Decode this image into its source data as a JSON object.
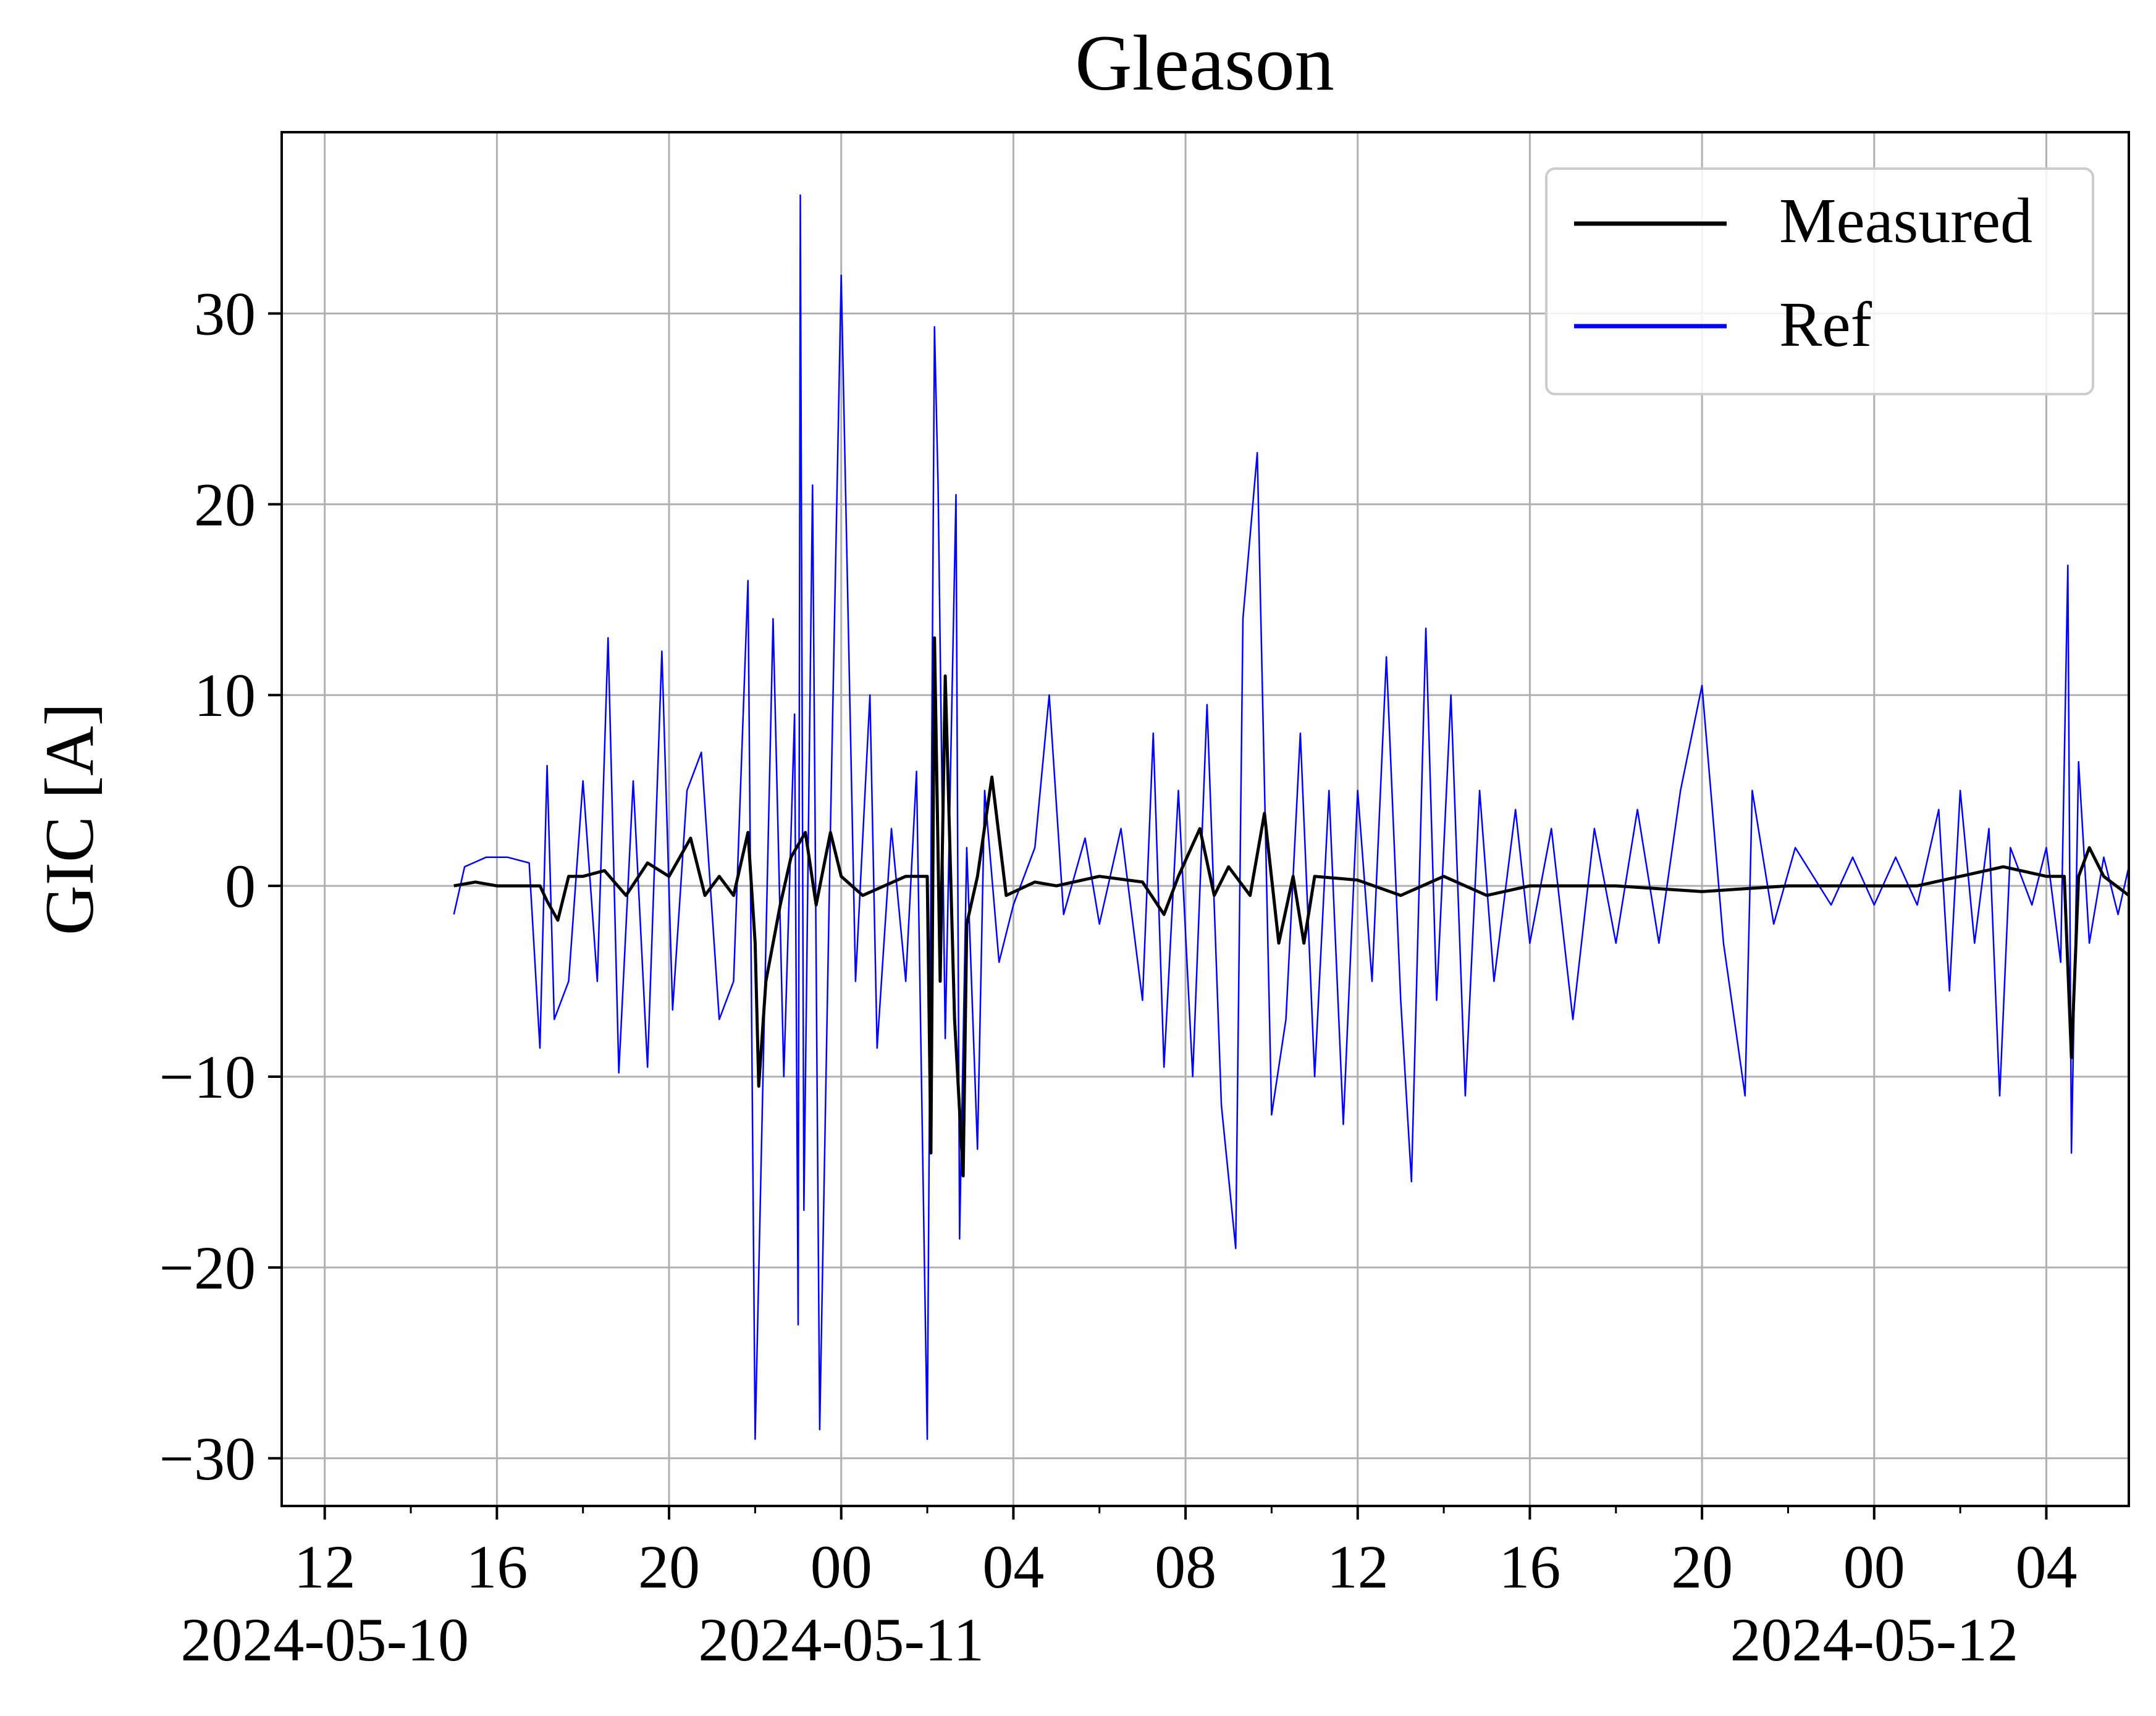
{
  "chart_data": {
    "type": "line",
    "title": "Gleason",
    "xlabel": "",
    "ylabel": "GIC [A]",
    "xlim": [
      "2024-05-10T11:00",
      "2024-05-12T05:55"
    ],
    "ylim": [
      -32.5,
      39.5
    ],
    "x_ticks": [
      {
        "t": "2024-05-10T12:00",
        "label": "12",
        "date": "2024-05-10"
      },
      {
        "t": "2024-05-10T16:00",
        "label": "16",
        "date": ""
      },
      {
        "t": "2024-05-10T20:00",
        "label": "20",
        "date": ""
      },
      {
        "t": "2024-05-11T00:00",
        "label": "00",
        "date": "2024-05-11"
      },
      {
        "t": "2024-05-11T04:00",
        "label": "04",
        "date": ""
      },
      {
        "t": "2024-05-11T08:00",
        "label": "08",
        "date": ""
      },
      {
        "t": "2024-05-11T12:00",
        "label": "12",
        "date": ""
      },
      {
        "t": "2024-05-11T16:00",
        "label": "16",
        "date": ""
      },
      {
        "t": "2024-05-11T20:00",
        "label": "20",
        "date": ""
      },
      {
        "t": "2024-05-12T00:00",
        "label": "00",
        "date": "2024-05-12"
      },
      {
        "t": "2024-05-12T04:00",
        "label": "04",
        "date": ""
      }
    ],
    "x_minor_ticks": [
      "2024-05-10T14:00",
      "2024-05-10T18:00",
      "2024-05-10T22:00",
      "2024-05-11T02:00",
      "2024-05-11T06:00",
      "2024-05-11T10:00",
      "2024-05-11T14:00",
      "2024-05-11T18:00",
      "2024-05-11T22:00",
      "2024-05-12T02:00"
    ],
    "y_ticks": [
      -30,
      -20,
      -10,
      0,
      10,
      20,
      30
    ],
    "grid": true,
    "legend": "upper right",
    "series": [
      {
        "name": "Measured",
        "color": "#000000",
        "points": [
          [
            "2024-05-10T15:00",
            0
          ],
          [
            "2024-05-10T15:30",
            0.2
          ],
          [
            "2024-05-10T16:00",
            0
          ],
          [
            "2024-05-10T16:30",
            0
          ],
          [
            "2024-05-10T17:00",
            0
          ],
          [
            "2024-05-10T17:10",
            -0.8
          ],
          [
            "2024-05-10T17:25",
            -1.8
          ],
          [
            "2024-05-10T17:40",
            0.5
          ],
          [
            "2024-05-10T18:00",
            0.5
          ],
          [
            "2024-05-10T18:30",
            0.8
          ],
          [
            "2024-05-10T19:00",
            -0.5
          ],
          [
            "2024-05-10T19:30",
            1.2
          ],
          [
            "2024-05-10T20:00",
            0.5
          ],
          [
            "2024-05-10T20:30",
            2.5
          ],
          [
            "2024-05-10T20:50",
            -0.5
          ],
          [
            "2024-05-10T21:10",
            0.5
          ],
          [
            "2024-05-10T21:30",
            -0.5
          ],
          [
            "2024-05-10T21:50",
            2.8
          ],
          [
            "2024-05-10T22:00",
            -3
          ],
          [
            "2024-05-10T22:05",
            -10.5
          ],
          [
            "2024-05-10T22:15",
            -5
          ],
          [
            "2024-05-10T22:35",
            -1
          ],
          [
            "2024-05-10T22:50",
            1.5
          ],
          [
            "2024-05-10T23:10",
            2.8
          ],
          [
            "2024-05-10T23:25",
            -1
          ],
          [
            "2024-05-10T23:45",
            2.8
          ],
          [
            "2024-05-11T00:00",
            0.5
          ],
          [
            "2024-05-11T00:30",
            -0.5
          ],
          [
            "2024-05-11T01:00",
            0
          ],
          [
            "2024-05-11T01:30",
            0.5
          ],
          [
            "2024-05-11T02:00",
            0.5
          ],
          [
            "2024-05-11T02:05",
            -14
          ],
          [
            "2024-05-11T02:10",
            13
          ],
          [
            "2024-05-11T02:18",
            -5
          ],
          [
            "2024-05-11T02:25",
            11
          ],
          [
            "2024-05-11T02:38",
            -7
          ],
          [
            "2024-05-11T02:50",
            -15.2
          ],
          [
            "2024-05-11T02:55",
            -2
          ],
          [
            "2024-05-11T03:10",
            0.5
          ],
          [
            "2024-05-11T03:30",
            5.7
          ],
          [
            "2024-05-11T03:50",
            -0.5
          ],
          [
            "2024-05-11T04:30",
            0.2
          ],
          [
            "2024-05-11T05:00",
            0
          ],
          [
            "2024-05-11T06:00",
            0.5
          ],
          [
            "2024-05-11T07:00",
            0.2
          ],
          [
            "2024-05-11T07:30",
            -1.5
          ],
          [
            "2024-05-11T07:50",
            0.5
          ],
          [
            "2024-05-11T08:20",
            3
          ],
          [
            "2024-05-11T08:40",
            -0.5
          ],
          [
            "2024-05-11T09:00",
            1
          ],
          [
            "2024-05-11T09:30",
            -0.5
          ],
          [
            "2024-05-11T09:50",
            3.8
          ],
          [
            "2024-05-11T10:10",
            -3
          ],
          [
            "2024-05-11T10:30",
            0.5
          ],
          [
            "2024-05-11T10:45",
            -3
          ],
          [
            "2024-05-11T11:00",
            0.5
          ],
          [
            "2024-05-11T12:00",
            0.3
          ],
          [
            "2024-05-11T13:00",
            -0.5
          ],
          [
            "2024-05-11T14:00",
            0.5
          ],
          [
            "2024-05-11T15:00",
            -0.5
          ],
          [
            "2024-05-11T16:00",
            0
          ],
          [
            "2024-05-11T18:00",
            0
          ],
          [
            "2024-05-11T20:00",
            -0.3
          ],
          [
            "2024-05-11T22:00",
            0
          ],
          [
            "2024-05-12T00:00",
            0
          ],
          [
            "2024-05-12T01:00",
            0
          ],
          [
            "2024-05-12T02:00",
            0.5
          ],
          [
            "2024-05-12T03:00",
            1
          ],
          [
            "2024-05-12T04:00",
            0.5
          ],
          [
            "2024-05-12T04:25",
            0.5
          ],
          [
            "2024-05-12T04:35",
            -9
          ],
          [
            "2024-05-12T04:45",
            0.5
          ],
          [
            "2024-05-12T05:00",
            2
          ],
          [
            "2024-05-12T05:20",
            0.5
          ],
          [
            "2024-05-12T05:55",
            -0.5
          ]
        ]
      },
      {
        "name": "Ref",
        "color": "#0000ff",
        "points": [
          [
            "2024-05-10T15:00",
            -1.5
          ],
          [
            "2024-05-10T15:15",
            1
          ],
          [
            "2024-05-10T15:45",
            1.5
          ],
          [
            "2024-05-10T16:15",
            1.5
          ],
          [
            "2024-05-10T16:45",
            1.2
          ],
          [
            "2024-05-10T17:00",
            -8.5
          ],
          [
            "2024-05-10T17:10",
            6.3
          ],
          [
            "2024-05-10T17:20",
            -7
          ],
          [
            "2024-05-10T17:40",
            -5
          ],
          [
            "2024-05-10T18:00",
            5.5
          ],
          [
            "2024-05-10T18:20",
            -5
          ],
          [
            "2024-05-10T18:35",
            13
          ],
          [
            "2024-05-10T18:50",
            -9.8
          ],
          [
            "2024-05-10T19:10",
            5.5
          ],
          [
            "2024-05-10T19:30",
            -9.5
          ],
          [
            "2024-05-10T19:50",
            12.3
          ],
          [
            "2024-05-10T20:05",
            -6.5
          ],
          [
            "2024-05-10T20:25",
            5
          ],
          [
            "2024-05-10T20:45",
            7
          ],
          [
            "2024-05-10T21:10",
            -7
          ],
          [
            "2024-05-10T21:30",
            -5
          ],
          [
            "2024-05-10T21:50",
            16
          ],
          [
            "2024-05-10T22:00",
            -29
          ],
          [
            "2024-05-10T22:15",
            -3
          ],
          [
            "2024-05-10T22:25",
            14
          ],
          [
            "2024-05-10T22:40",
            -10
          ],
          [
            "2024-05-10T22:55",
            9
          ],
          [
            "2024-05-10T23:00",
            -23
          ],
          [
            "2024-05-10T23:03",
            36.2
          ],
          [
            "2024-05-10T23:08",
            -17
          ],
          [
            "2024-05-10T23:20",
            21
          ],
          [
            "2024-05-10T23:30",
            -28.5
          ],
          [
            "2024-05-10T23:45",
            3
          ],
          [
            "2024-05-11T00:00",
            32
          ],
          [
            "2024-05-11T00:20",
            -5
          ],
          [
            "2024-05-11T00:40",
            10
          ],
          [
            "2024-05-11T00:50",
            -8.5
          ],
          [
            "2024-05-11T01:10",
            3
          ],
          [
            "2024-05-11T01:30",
            -5
          ],
          [
            "2024-05-11T01:45",
            6
          ],
          [
            "2024-05-11T02:00",
            -29
          ],
          [
            "2024-05-11T02:10",
            29.3
          ],
          [
            "2024-05-11T02:15",
            21
          ],
          [
            "2024-05-11T02:25",
            -8
          ],
          [
            "2024-05-11T02:40",
            20.5
          ],
          [
            "2024-05-11T02:45",
            -18.5
          ],
          [
            "2024-05-11T02:55",
            2
          ],
          [
            "2024-05-11T03:10",
            -13.8
          ],
          [
            "2024-05-11T03:20",
            5
          ],
          [
            "2024-05-11T03:40",
            -4
          ],
          [
            "2024-05-11T04:00",
            -1
          ],
          [
            "2024-05-11T04:30",
            2
          ],
          [
            "2024-05-11T04:50",
            10
          ],
          [
            "2024-05-11T05:10",
            -1.5
          ],
          [
            "2024-05-11T05:40",
            2.5
          ],
          [
            "2024-05-11T06:00",
            -2
          ],
          [
            "2024-05-11T06:30",
            3
          ],
          [
            "2024-05-11T07:00",
            -6
          ],
          [
            "2024-05-11T07:15",
            8
          ],
          [
            "2024-05-11T07:30",
            -9.5
          ],
          [
            "2024-05-11T07:50",
            5
          ],
          [
            "2024-05-11T08:10",
            -10
          ],
          [
            "2024-05-11T08:30",
            9.5
          ],
          [
            "2024-05-11T08:50",
            -11.5
          ],
          [
            "2024-05-11T09:10",
            -19
          ],
          [
            "2024-05-11T09:20",
            14
          ],
          [
            "2024-05-11T09:40",
            22.7
          ],
          [
            "2024-05-11T10:00",
            -12
          ],
          [
            "2024-05-11T10:20",
            -7
          ],
          [
            "2024-05-11T10:40",
            8
          ],
          [
            "2024-05-11T11:00",
            -10
          ],
          [
            "2024-05-11T11:20",
            5
          ],
          [
            "2024-05-11T11:40",
            -12.5
          ],
          [
            "2024-05-11T12:00",
            5
          ],
          [
            "2024-05-11T12:20",
            -5
          ],
          [
            "2024-05-11T12:40",
            12
          ],
          [
            "2024-05-11T13:00",
            -6
          ],
          [
            "2024-05-11T13:15",
            -15.5
          ],
          [
            "2024-05-11T13:35",
            13.5
          ],
          [
            "2024-05-11T13:50",
            -6
          ],
          [
            "2024-05-11T14:10",
            10
          ],
          [
            "2024-05-11T14:30",
            -11
          ],
          [
            "2024-05-11T14:50",
            5
          ],
          [
            "2024-05-11T15:10",
            -5
          ],
          [
            "2024-05-11T15:40",
            4
          ],
          [
            "2024-05-11T16:00",
            -3
          ],
          [
            "2024-05-11T16:30",
            3
          ],
          [
            "2024-05-11T17:00",
            -7
          ],
          [
            "2024-05-11T17:30",
            3
          ],
          [
            "2024-05-11T18:00",
            -3
          ],
          [
            "2024-05-11T18:30",
            4
          ],
          [
            "2024-05-11T19:00",
            -3
          ],
          [
            "2024-05-11T19:30",
            5
          ],
          [
            "2024-05-11T20:00",
            10.5
          ],
          [
            "2024-05-11T20:30",
            -3
          ],
          [
            "2024-05-11T21:00",
            -11
          ],
          [
            "2024-05-11T21:10",
            5
          ],
          [
            "2024-05-11T21:40",
            -2
          ],
          [
            "2024-05-11T22:10",
            2
          ],
          [
            "2024-05-11T23:00",
            -1
          ],
          [
            "2024-05-11T23:30",
            1.5
          ],
          [
            "2024-05-12T00:00",
            -1
          ],
          [
            "2024-05-12T00:30",
            1.5
          ],
          [
            "2024-05-12T01:00",
            -1
          ],
          [
            "2024-05-12T01:30",
            4
          ],
          [
            "2024-05-12T01:45",
            -5.5
          ],
          [
            "2024-05-12T02:00",
            5
          ],
          [
            "2024-05-12T02:20",
            -3
          ],
          [
            "2024-05-12T02:40",
            3
          ],
          [
            "2024-05-12T02:55",
            -11
          ],
          [
            "2024-05-12T03:10",
            2
          ],
          [
            "2024-05-12T03:40",
            -1
          ],
          [
            "2024-05-12T04:00",
            2
          ],
          [
            "2024-05-12T04:20",
            -4
          ],
          [
            "2024-05-12T04:30",
            16.8
          ],
          [
            "2024-05-12T04:35",
            -14
          ],
          [
            "2024-05-12T04:45",
            6.5
          ],
          [
            "2024-05-12T05:00",
            -3
          ],
          [
            "2024-05-12T05:20",
            1.5
          ],
          [
            "2024-05-12T05:40",
            -1.5
          ],
          [
            "2024-05-12T05:55",
            1
          ]
        ]
      }
    ]
  }
}
